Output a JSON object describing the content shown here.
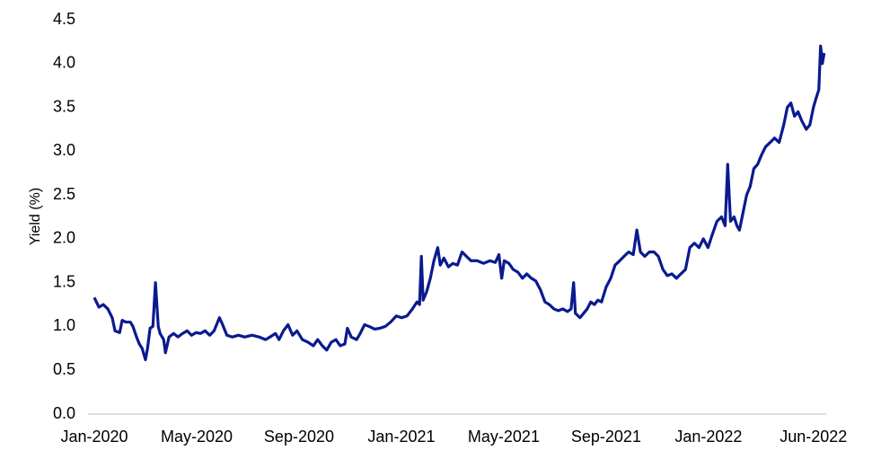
{
  "chart_data": {
    "type": "line",
    "ylabel": "Yield (%)",
    "x": [
      0,
      0.18,
      0.35,
      0.53,
      0.7,
      0.81,
      0.99,
      1.09,
      1.23,
      1.41,
      1.51,
      1.65,
      1.76,
      1.87,
      1.94,
      2.0,
      2.08,
      2.18,
      2.29,
      2.39,
      2.5,
      2.57,
      2.71,
      2.78,
      2.92,
      3.1,
      3.27,
      3.45,
      3.63,
      3.8,
      3.98,
      4.15,
      4.33,
      4.51,
      4.68,
      4.89,
      5.0,
      5.18,
      5.39,
      5.63,
      5.88,
      6.16,
      6.44,
      6.69,
      6.87,
      7.08,
      7.22,
      7.39,
      7.57,
      7.75,
      7.92,
      8.13,
      8.35,
      8.56,
      8.73,
      8.91,
      9.08,
      9.26,
      9.44,
      9.61,
      9.79,
      9.89,
      10.04,
      10.25,
      10.39,
      10.56,
      10.74,
      10.95,
      11.16,
      11.37,
      11.58,
      11.8,
      12.01,
      12.22,
      12.43,
      12.61,
      12.71,
      12.78,
      12.85,
      12.99,
      13.13,
      13.27,
      13.42,
      13.52,
      13.66,
      13.84,
      14.01,
      14.19,
      14.37,
      14.54,
      14.72,
      14.96,
      15.21,
      15.46,
      15.67,
      15.81,
      15.92,
      16.02,
      16.2,
      16.37,
      16.55,
      16.73,
      16.9,
      17.08,
      17.25,
      17.43,
      17.61,
      17.78,
      17.96,
      18.13,
      18.31,
      18.49,
      18.63,
      18.73,
      18.8,
      18.98,
      19.12,
      19.26,
      19.4,
      19.54,
      19.68,
      19.82,
      20.0,
      20.18,
      20.35,
      20.53,
      20.7,
      20.88,
      21.06,
      21.2,
      21.34,
      21.51,
      21.69,
      21.87,
      22.04,
      22.22,
      22.39,
      22.57,
      22.75,
      22.92,
      23.1,
      23.27,
      23.45,
      23.63,
      23.8,
      23.98,
      24.15,
      24.33,
      24.51,
      24.65,
      24.75,
      24.86,
      25.0,
      25.11,
      25.21,
      25.35,
      25.49,
      25.63,
      25.77,
      25.92,
      26.06,
      26.23,
      26.41,
      26.58,
      26.76,
      26.94,
      27.08,
      27.22,
      27.36,
      27.5,
      27.64,
      27.82,
      27.96,
      28.1,
      28.2,
      28.31,
      28.38,
      28.45,
      28.52
    ],
    "series": [
      {
        "name": "Yield",
        "color": "#0a1a8f",
        "values": [
          1.33,
          1.22,
          1.25,
          1.2,
          1.1,
          0.95,
          0.93,
          1.07,
          1.05,
          1.05,
          1.0,
          0.88,
          0.8,
          0.75,
          0.68,
          0.62,
          0.75,
          0.98,
          1.0,
          1.5,
          1.0,
          0.92,
          0.85,
          0.7,
          0.88,
          0.92,
          0.88,
          0.92,
          0.95,
          0.9,
          0.93,
          0.92,
          0.95,
          0.9,
          0.95,
          1.1,
          1.03,
          0.9,
          0.88,
          0.9,
          0.88,
          0.9,
          0.88,
          0.85,
          0.88,
          0.92,
          0.85,
          0.95,
          1.02,
          0.9,
          0.95,
          0.85,
          0.82,
          0.78,
          0.85,
          0.78,
          0.73,
          0.82,
          0.85,
          0.78,
          0.8,
          0.98,
          0.88,
          0.85,
          0.92,
          1.02,
          1.0,
          0.97,
          0.98,
          1.0,
          1.05,
          1.12,
          1.1,
          1.12,
          1.2,
          1.28,
          1.25,
          1.8,
          1.3,
          1.4,
          1.55,
          1.75,
          1.9,
          1.7,
          1.78,
          1.68,
          1.72,
          1.7,
          1.85,
          1.8,
          1.75,
          1.75,
          1.72,
          1.75,
          1.73,
          1.82,
          1.55,
          1.75,
          1.72,
          1.65,
          1.62,
          1.55,
          1.6,
          1.55,
          1.52,
          1.42,
          1.28,
          1.25,
          1.2,
          1.18,
          1.2,
          1.17,
          1.2,
          1.5,
          1.15,
          1.1,
          1.15,
          1.2,
          1.28,
          1.25,
          1.3,
          1.28,
          1.45,
          1.55,
          1.7,
          1.75,
          1.8,
          1.85,
          1.82,
          2.1,
          1.85,
          1.8,
          1.85,
          1.85,
          1.8,
          1.65,
          1.58,
          1.6,
          1.55,
          1.6,
          1.65,
          1.9,
          1.95,
          1.9,
          2.0,
          1.9,
          2.05,
          2.2,
          2.25,
          2.15,
          2.85,
          2.2,
          2.25,
          2.15,
          2.1,
          2.3,
          2.5,
          2.6,
          2.8,
          2.85,
          2.95,
          3.05,
          3.1,
          3.15,
          3.1,
          3.3,
          3.5,
          3.55,
          3.4,
          3.45,
          3.35,
          3.25,
          3.3,
          3.5,
          3.6,
          3.7,
          4.2,
          4.0,
          4.12
        ]
      }
    ],
    "xlim": [
      0,
      28.6
    ],
    "xticks": [
      {
        "value": 0,
        "label": "Jan-2020"
      },
      {
        "value": 4,
        "label": "May-2020"
      },
      {
        "value": 8,
        "label": "Sep-2020"
      },
      {
        "value": 12,
        "label": "Jan-2021"
      },
      {
        "value": 16,
        "label": "May-2021"
      },
      {
        "value": 20,
        "label": "Sep-2021"
      },
      {
        "value": 24,
        "label": "Jan-2022"
      },
      {
        "value": 28.1,
        "label": "Jun-2022"
      }
    ],
    "ylim": [
      0,
      4.5
    ],
    "yticks": [
      {
        "value": 0,
        "label": "0.0"
      },
      0.5,
      {
        "value": 1,
        "label": "1.0"
      },
      1.5,
      {
        "value": 2,
        "label": "2.0"
      },
      2.5,
      {
        "value": 3,
        "label": "3.0"
      },
      3.5,
      {
        "value": 4,
        "label": "4.0"
      },
      4.5
    ],
    "grid": false
  }
}
